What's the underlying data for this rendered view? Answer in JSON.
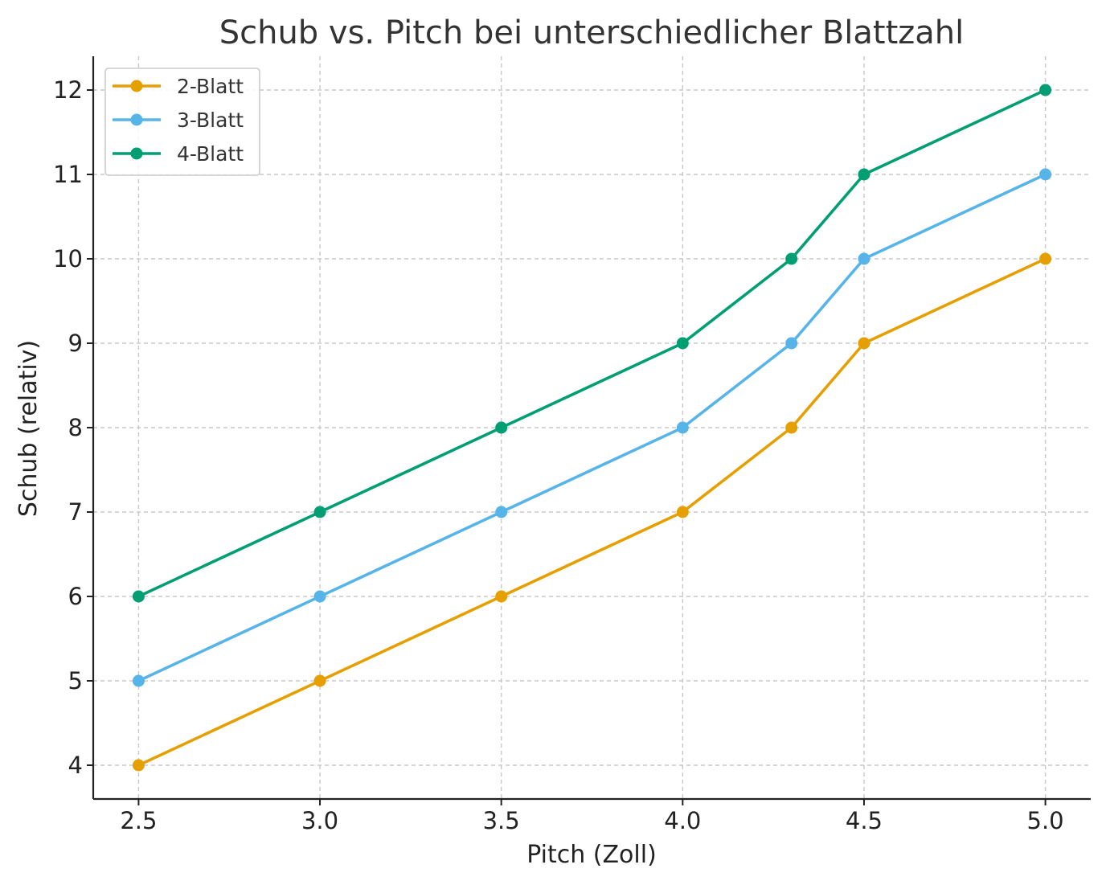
{
  "chart_data": {
    "type": "line",
    "title": "Schub vs. Pitch bei unterschiedlicher Blattzahl",
    "xlabel": "Pitch (Zoll)",
    "ylabel": "Schub (relativ)",
    "x": [
      2.5,
      3.0,
      3.5,
      4.0,
      4.3,
      4.5,
      5.0
    ],
    "xticks": [
      "2.5",
      "3.0",
      "3.5",
      "4.0",
      "4.5",
      "5.0"
    ],
    "xtick_values": [
      2.5,
      3.0,
      3.5,
      4.0,
      4.5,
      5.0
    ],
    "yticks": [
      "4",
      "5",
      "6",
      "7",
      "8",
      "9",
      "10",
      "11",
      "12"
    ],
    "ytick_values": [
      4,
      5,
      6,
      7,
      8,
      9,
      10,
      11,
      12
    ],
    "xlim": [
      2.375,
      5.125
    ],
    "ylim": [
      3.6,
      12.4
    ],
    "grid": true,
    "legend_position": "top-left",
    "series": [
      {
        "name": "2-Blatt",
        "color": "#E69F00",
        "values": [
          4,
          5,
          6,
          7,
          8,
          9,
          10
        ]
      },
      {
        "name": "3-Blatt",
        "color": "#56B4E9",
        "values": [
          5,
          6,
          7,
          8,
          9,
          10,
          11
        ]
      },
      {
        "name": "4-Blatt",
        "color": "#009E73",
        "values": [
          6,
          7,
          8,
          9,
          10,
          11,
          12
        ]
      }
    ]
  }
}
